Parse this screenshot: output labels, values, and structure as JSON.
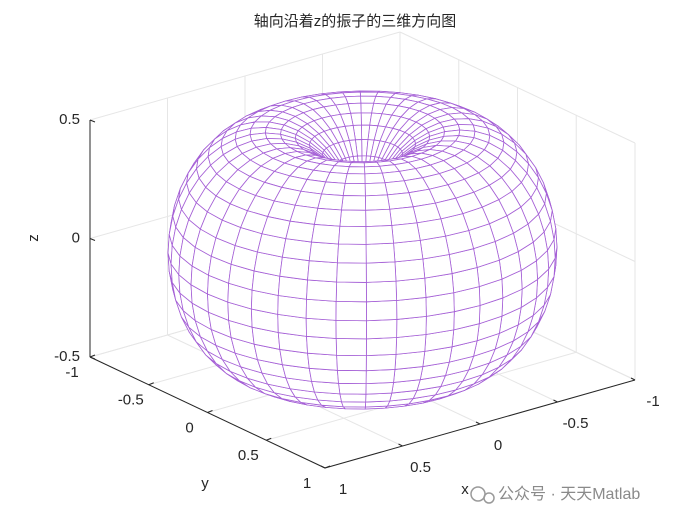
{
  "chart_data": {
    "type": "mesh3d",
    "title": "轴向沿着z的振子的三维方向图",
    "x_label": "x",
    "y_label": "y",
    "z_label": "z",
    "xlim": [
      -1,
      1
    ],
    "ylim": [
      -1,
      1
    ],
    "zlim": [
      -0.5,
      0.5
    ],
    "xticks": [
      -1,
      -0.5,
      0,
      0.5,
      1
    ],
    "yticks": [
      -1,
      -0.5,
      0,
      0.5,
      1
    ],
    "zticks": [
      -0.5,
      0,
      0.5
    ],
    "color": "#a560d6",
    "grid": true,
    "watermark": "公众号 · 天天Matlab"
  }
}
